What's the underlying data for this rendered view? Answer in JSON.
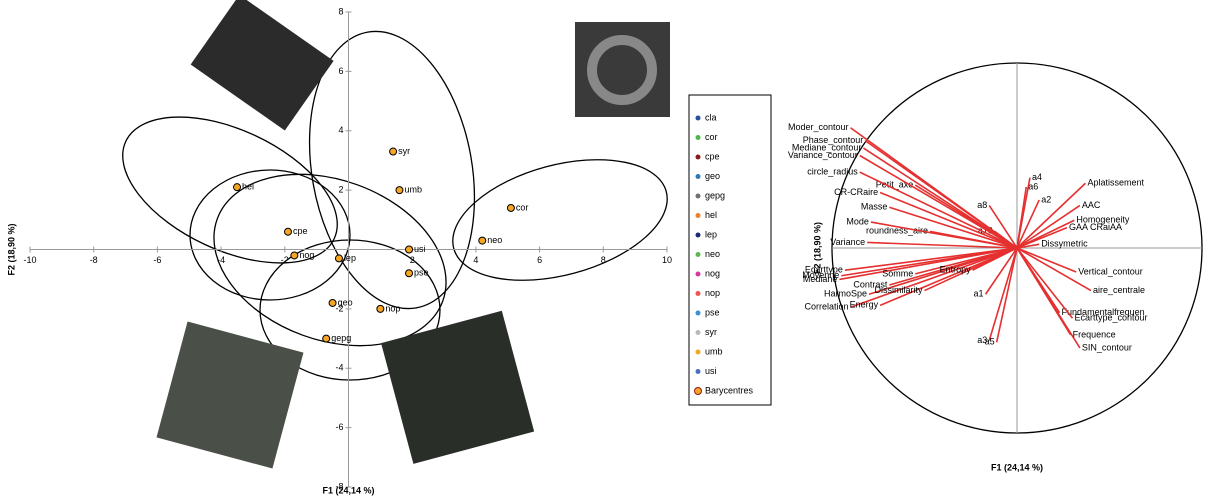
{
  "chart_data": [
    {
      "type": "scatter",
      "x_label": "F1 (24,14 %)",
      "y_label": "F2 (18,90 %)",
      "xlim": [
        -10,
        10
      ],
      "ylim": [
        -8,
        8
      ],
      "xticks": [
        -10,
        -8,
        -6,
        -4,
        -2,
        2,
        4,
        6,
        8,
        10
      ],
      "yticks": [
        -8,
        -6,
        -4,
        -2,
        2,
        4,
        6,
        8
      ],
      "legend": {
        "position": "right",
        "names": [
          "cla",
          "cor",
          "cpe",
          "geo",
          "gepg",
          "hel",
          "lep",
          "neo",
          "nog",
          "nop",
          "pse",
          "syr",
          "umb",
          "usi",
          "Barycentres"
        ],
        "colors": [
          "#2a4fa0",
          "#4db848",
          "#8b1a1a",
          "#2a7ab8",
          "#707070",
          "#f07f23",
          "#1e2a78",
          "#5bb84d",
          "#d43a9b",
          "#ef5350",
          "#3a8fd6",
          "#b8b8b8",
          "#f6a623",
          "#4a6fbf",
          "#f6a623"
        ]
      },
      "series": [
        {
          "name": "Barycentres",
          "color": "#f6a623",
          "labels": [
            "syr",
            "umb",
            "cor",
            "neo",
            "usi",
            "pse",
            "nop",
            "geo",
            "gepg",
            "lep",
            "nog",
            "cpe",
            "hel"
          ],
          "x": [
            1.4,
            1.6,
            5.1,
            4.2,
            1.9,
            1.9,
            1.0,
            -0.5,
            -0.7,
            -0.3,
            -1.7,
            -1.9,
            -3.5
          ],
          "values": [
            3.3,
            2.0,
            1.4,
            0.3,
            0.0,
            -0.8,
            -2.0,
            -1.8,
            -3.0,
            -0.3,
            -0.2,
            0.6,
            2.1
          ]
        }
      ]
    },
    {
      "type": "correlation-circle",
      "x_label": "F1 (24,14 %)",
      "y_label": "F2 (18,90 %)",
      "color": "#e53030",
      "variables": [
        "Aplatissement",
        "AAC",
        "Homogeneity",
        "GAA CRaiAA",
        "a4",
        "a6",
        "a2",
        "a8",
        "a10",
        "roundness_aire",
        "Masse",
        "Mode",
        "Variance",
        "CR-CRaire",
        "Petit_axe",
        "Ecarttype",
        "Moyenne",
        "Mediane",
        "HarmoSpe",
        "Correlation",
        "Energy",
        "Contrast",
        "Dissimilarity",
        "Somme",
        "Entropy",
        "a1",
        "a3",
        "a5",
        "Frequence",
        "SIN_contour",
        "Fundamentalfrequen",
        "aire_centrale",
        "Vertical_contour",
        "Ecarttype_contour",
        "Dissymetric",
        "Moder_contour",
        "Phase_contour",
        "Variance_contour",
        "Mediane_contour",
        "circle_radius"
      ],
      "x": [
        0.37,
        0.34,
        0.31,
        0.27,
        0.07,
        0.05,
        0.12,
        -0.15,
        -0.12,
        -0.47,
        -0.69,
        -0.79,
        -0.81,
        -0.74,
        -0.55,
        -0.93,
        -0.95,
        -0.96,
        -0.8,
        -0.9,
        -0.74,
        -0.69,
        -0.5,
        -0.55,
        -0.24,
        -0.17,
        -0.15,
        -0.11,
        0.29,
        0.34,
        0.23,
        0.4,
        0.32,
        0.3,
        0.12,
        -0.9,
        -0.82,
        -0.85,
        -0.83,
        -0.85
      ],
      "values": [
        0.35,
        0.23,
        0.15,
        0.11,
        0.38,
        0.33,
        0.26,
        0.23,
        0.09,
        0.09,
        0.22,
        0.14,
        0.03,
        0.3,
        0.34,
        -0.12,
        -0.15,
        -0.17,
        -0.25,
        -0.32,
        -0.31,
        -0.2,
        -0.23,
        -0.14,
        -0.12,
        -0.25,
        -0.5,
        -0.51,
        -0.47,
        -0.54,
        -0.35,
        -0.23,
        -0.13,
        -0.38,
        0.02,
        0.65,
        0.58,
        0.5,
        0.54,
        0.41
      ]
    }
  ]
}
